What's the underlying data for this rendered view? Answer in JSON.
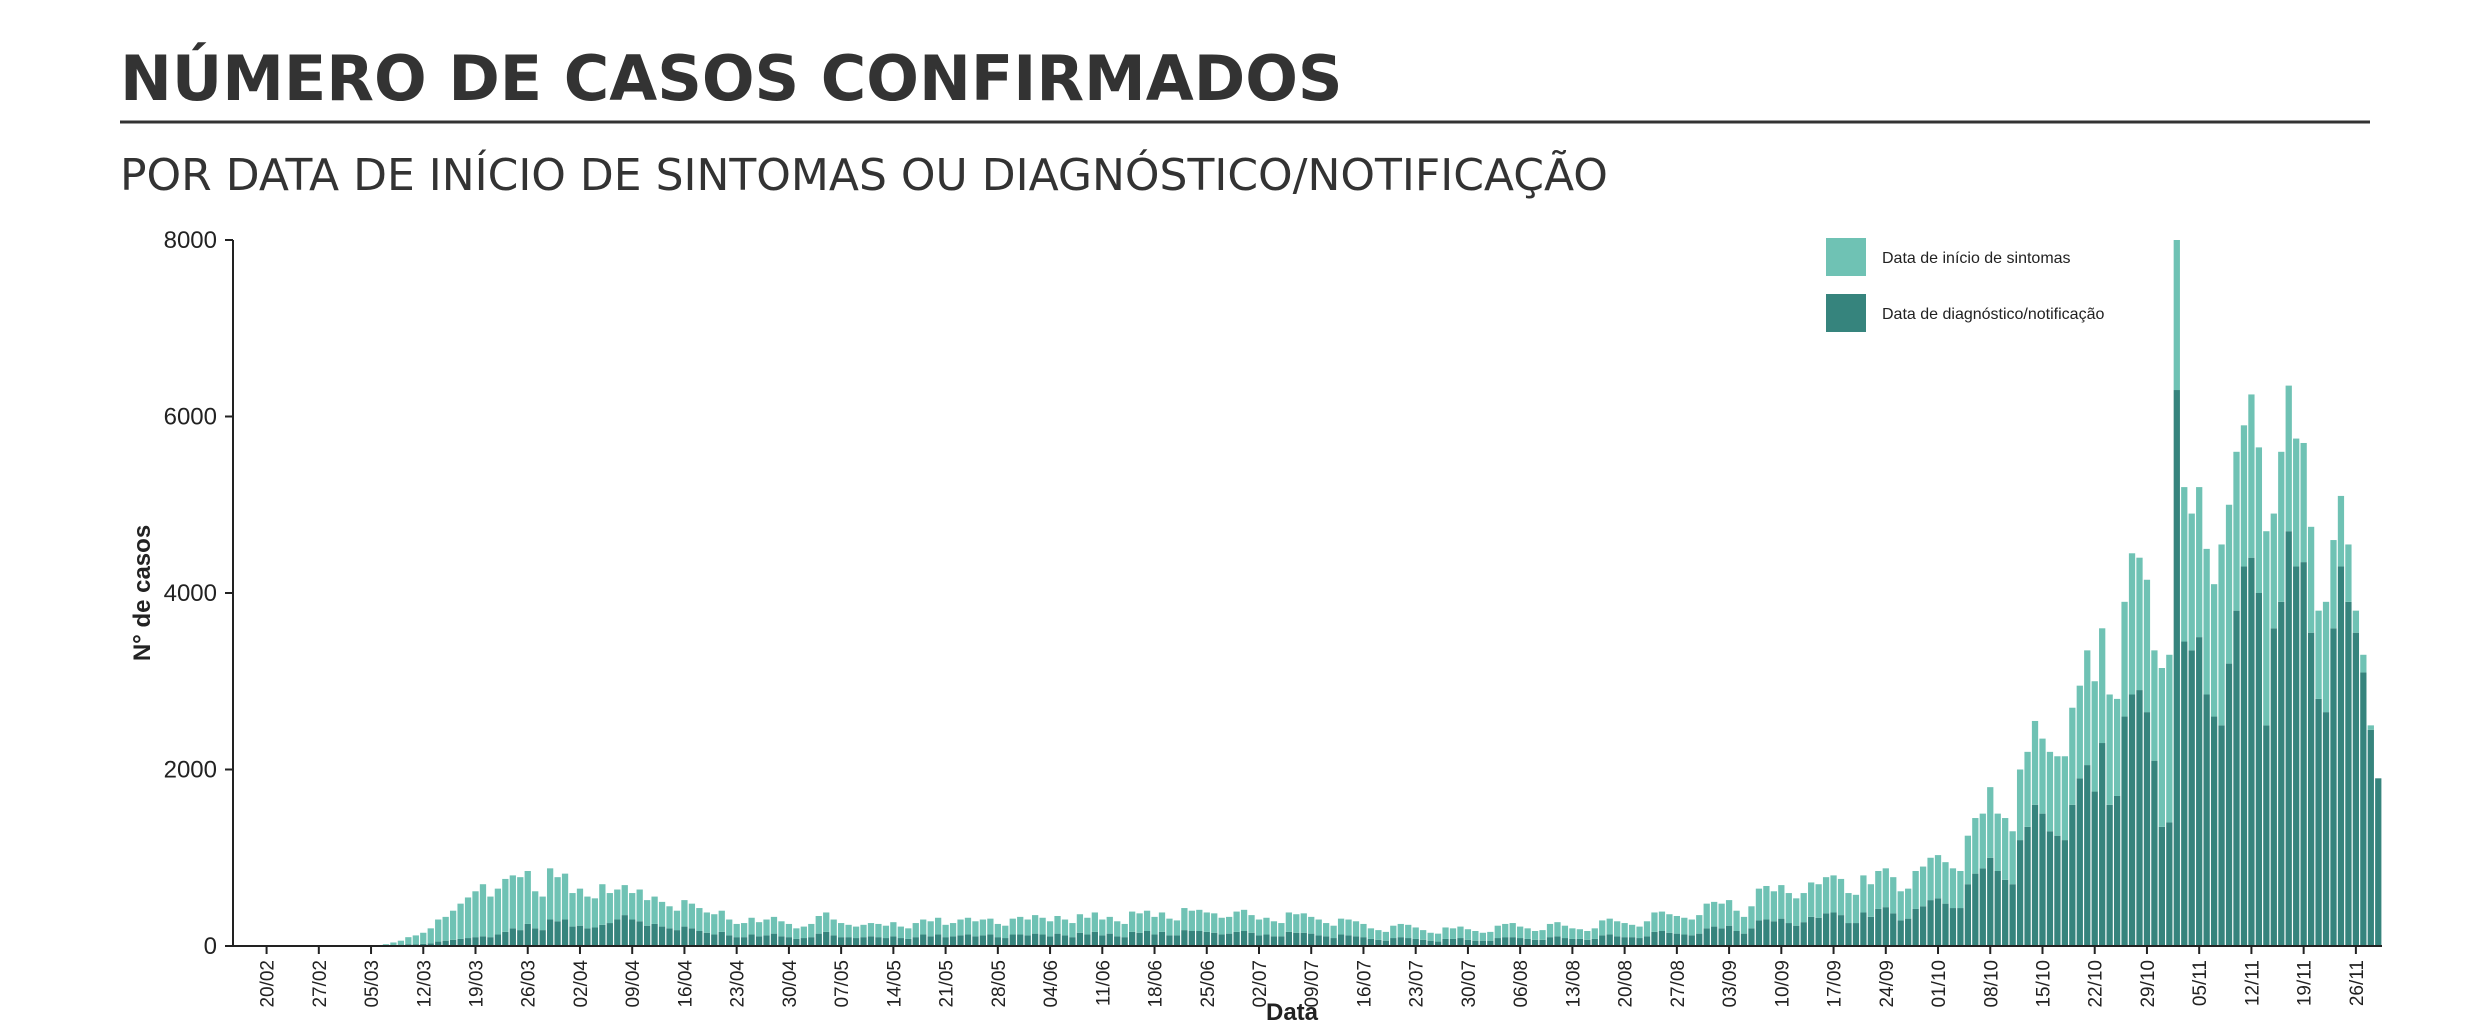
{
  "chart_data": {
    "type": "bar",
    "stacked": true,
    "title": "NÚMERO DE CASOS CONFIRMADOS",
    "subtitle": "POR DATA DE INÍCIO DE SINTOMAS OU DIAGNÓSTICO/NOTIFICAÇÃO",
    "x_label": "Data",
    "y_label": "N° de casos",
    "ylim": [
      0,
      8000
    ],
    "yticks": [
      0,
      2000,
      4000,
      6000,
      8000
    ],
    "grid": false,
    "legend_position": "top-right",
    "categories": [
      null,
      null,
      null,
      null,
      "20/02",
      null,
      null,
      null,
      null,
      null,
      null,
      "27/02",
      null,
      null,
      null,
      null,
      null,
      null,
      "05/03",
      null,
      null,
      null,
      null,
      null,
      null,
      "12/03",
      null,
      null,
      null,
      null,
      null,
      null,
      "19/03",
      null,
      null,
      null,
      null,
      null,
      null,
      "26/03",
      null,
      null,
      null,
      null,
      null,
      null,
      "02/04",
      null,
      null,
      null,
      null,
      null,
      null,
      "09/04",
      null,
      null,
      null,
      null,
      null,
      null,
      "16/04",
      null,
      null,
      null,
      null,
      null,
      null,
      "23/04",
      null,
      null,
      null,
      null,
      null,
      null,
      "30/04",
      null,
      null,
      null,
      null,
      null,
      null,
      "07/05",
      null,
      null,
      null,
      null,
      null,
      null,
      "14/05",
      null,
      null,
      null,
      null,
      null,
      null,
      "21/05",
      null,
      null,
      null,
      null,
      null,
      null,
      "28/05",
      null,
      null,
      null,
      null,
      null,
      null,
      "04/06",
      null,
      null,
      null,
      null,
      null,
      null,
      "11/06",
      null,
      null,
      null,
      null,
      null,
      null,
      "18/06",
      null,
      null,
      null,
      null,
      null,
      null,
      "25/06",
      null,
      null,
      null,
      null,
      null,
      null,
      "02/07",
      null,
      null,
      null,
      null,
      null,
      null,
      "09/07",
      null,
      null,
      null,
      null,
      null,
      null,
      "16/07",
      null,
      null,
      null,
      null,
      null,
      null,
      "23/07",
      null,
      null,
      null,
      null,
      null,
      null,
      "30/07",
      null,
      null,
      null,
      null,
      null,
      null,
      "06/08",
      null,
      null,
      null,
      null,
      null,
      null,
      "13/08",
      null,
      null,
      null,
      null,
      null,
      null,
      "20/08",
      null,
      null,
      null,
      null,
      null,
      null,
      "27/08",
      null,
      null,
      null,
      null,
      null,
      null,
      "03/09",
      null,
      null,
      null,
      null,
      null,
      null,
      "10/09",
      null,
      null,
      null,
      null,
      null,
      null,
      "17/09",
      null,
      null,
      null,
      null,
      null,
      null,
      "24/09",
      null,
      null,
      null,
      null,
      null,
      null,
      "01/10",
      null,
      null,
      null,
      null,
      null,
      null,
      "08/10",
      null,
      null,
      null,
      null,
      null,
      null,
      "15/10",
      null,
      null,
      null,
      null,
      null,
      null,
      "22/10",
      null,
      null,
      null,
      null,
      null,
      null,
      "29/10",
      null,
      null,
      null,
      null,
      null,
      null,
      "05/11",
      null,
      null,
      null,
      null,
      null,
      null,
      "12/11",
      null,
      null,
      null,
      null,
      null,
      null,
      "19/11",
      null,
      null,
      null,
      null,
      null,
      null,
      "26/11",
      null,
      null,
      null
    ],
    "series": [
      {
        "name": "Data de início de sintomas",
        "color": "#6fc2b4",
        "values": [
          0,
          0,
          0,
          0,
          0,
          0,
          0,
          0,
          0,
          0,
          0,
          0,
          0,
          0,
          0,
          0,
          1,
          3,
          5,
          7,
          15,
          30,
          45,
          80,
          100,
          125,
          170,
          250,
          270,
          330,
          400,
          460,
          520,
          590,
          460,
          520,
          600,
          600,
          600,
          600,
          420,
          380,
          580,
          500,
          520,
          380,
          420,
          360,
          330,
          460,
          340,
          340,
          340,
          300,
          360,
          290,
          310,
          280,
          250,
          220,
          300,
          280,
          260,
          230,
          230,
          240,
          180,
          150,
          160,
          190,
          160,
          180,
          190,
          170,
          150,
          120,
          130,
          150,
          200,
          220,
          180,
          160,
          140,
          130,
          140,
          150,
          150,
          140,
          160,
          130,
          120,
          160,
          170,
          170,
          190,
          140,
          150,
          180,
          190,
          170,
          180,
          180,
          150,
          140,
          180,
          200,
          180,
          210,
          190,
          170,
          200,
          180,
          160,
          210,
          190,
          220,
          180,
          190,
          170,
          150,
          230,
          220,
          230,
          200,
          220,
          190,
          170,
          250,
          230,
          240,
          220,
          220,
          190,
          190,
          230,
          240,
          200,
          180,
          190,
          170,
          150,
          220,
          210,
          220,
          190,
          180,
          150,
          140,
          180,
          180,
          170,
          150,
          120,
          110,
          100,
          140,
          150,
          150,
          130,
          110,
          90,
          90,
          130,
          120,
          130,
          120,
          110,
          90,
          100,
          140,
          150,
          160,
          130,
          120,
          100,
          110,
          150,
          160,
          140,
          120,
          110,
          100,
          120,
          170,
          180,
          170,
          160,
          140,
          130,
          170,
          220,
          220,
          210,
          200,
          190,
          180,
          210,
          280,
          280,
          280,
          290,
          230,
          190,
          250,
          360,
          380,
          340,
          380,
          340,
          310,
          330,
          390,
          380,
          410,
          420,
          410,
          340,
          320,
          420,
          370,
          430,
          440,
          410,
          330,
          340,
          430,
          450,
          480,
          490,
          470,
          450,
          420,
          550,
          630,
          620,
          800,
          650,
          700,
          600,
          800,
          850,
          950,
          850,
          900,
          900,
          950,
          1100,
          1050,
          1300,
          1250,
          1300,
          1250,
          1100,
          1300,
          1600,
          1500,
          1500,
          1250,
          1800,
          1900,
          1700,
          1750,
          1550,
          1700,
          1650,
          1500,
          2050,
          1800,
          1800,
          1600,
          1850,
          1650,
          2200,
          1300,
          1700,
          1650,
          1450,
          1350,
          1200,
          1000,
          1250,
          1000,
          800,
          650,
          250,
          200,
          50,
          0
        ]
      },
      {
        "name": "Data de diagnóstico/notificação",
        "color": "#36847d",
        "values": [
          0,
          0,
          0,
          0,
          0,
          0,
          0,
          0,
          0,
          0,
          0,
          0,
          0,
          0,
          0,
          0,
          1,
          2,
          3,
          3,
          5,
          10,
          15,
          20,
          20,
          25,
          30,
          50,
          60,
          70,
          80,
          90,
          100,
          110,
          100,
          130,
          160,
          200,
          180,
          250,
          200,
          180,
          300,
          280,
          300,
          220,
          230,
          200,
          210,
          240,
          260,
          300,
          350,
          300,
          280,
          230,
          250,
          220,
          200,
          180,
          220,
          200,
          170,
          150,
          130,
          160,
          120,
          100,
          100,
          130,
          110,
          120,
          140,
          110,
          100,
          80,
          90,
          100,
          140,
          160,
          120,
          100,
          100,
          90,
          100,
          110,
          100,
          90,
          110,
          90,
          80,
          100,
          130,
          110,
          130,
          100,
          110,
          120,
          130,
          110,
          120,
          130,
          100,
          90,
          130,
          130,
          120,
          140,
          130,
          110,
          140,
          120,
          100,
          150,
          130,
          160,
          120,
          140,
          110,
          100,
          160,
          150,
          170,
          130,
          160,
          120,
          120,
          180,
          170,
          170,
          160,
          150,
          130,
          140,
          160,
          170,
          150,
          120,
          130,
          110,
          110,
          160,
          150,
          150,
          140,
          120,
          110,
          90,
          130,
          120,
          110,
          100,
          80,
          70,
          60,
          90,
          100,
          90,
          80,
          70,
          60,
          50,
          80,
          80,
          90,
          70,
          60,
          60,
          60,
          90,
          100,
          100,
          90,
          80,
          70,
          70,
          100,
          110,
          90,
          80,
          80,
          70,
          80,
          120,
          130,
          110,
          100,
          100,
          90,
          110,
          160,
          170,
          150,
          140,
          130,
          120,
          140,
          200,
          220,
          200,
          230,
          170,
          140,
          200,
          290,
          300,
          280,
          310,
          260,
          230,
          270,
          330,
          320,
          370,
          380,
          350,
          260,
          260,
          380,
          330,
          420,
          440,
          370,
          290,
          310,
          420,
          450,
          520,
          540,
          480,
          430,
          430,
          700,
          820,
          880,
          1000,
          850,
          750,
          700,
          1200,
          1350,
          1600,
          1500,
          1300,
          1250,
          1200,
          1600,
          1900,
          2050,
          1750,
          2300,
          1600,
          1700,
          2600,
          2850,
          2900,
          2650,
          2100,
          1350,
          1400,
          6300,
          3450,
          3350,
          3500,
          2850,
          2600,
          2500,
          3200,
          3800,
          4300,
          4400,
          4000,
          2500,
          3600,
          3900,
          4700,
          4300,
          4350,
          3550,
          2800,
          2650,
          3600,
          4300,
          3900,
          3550,
          3100,
          2450,
          1900
        ]
      }
    ]
  }
}
